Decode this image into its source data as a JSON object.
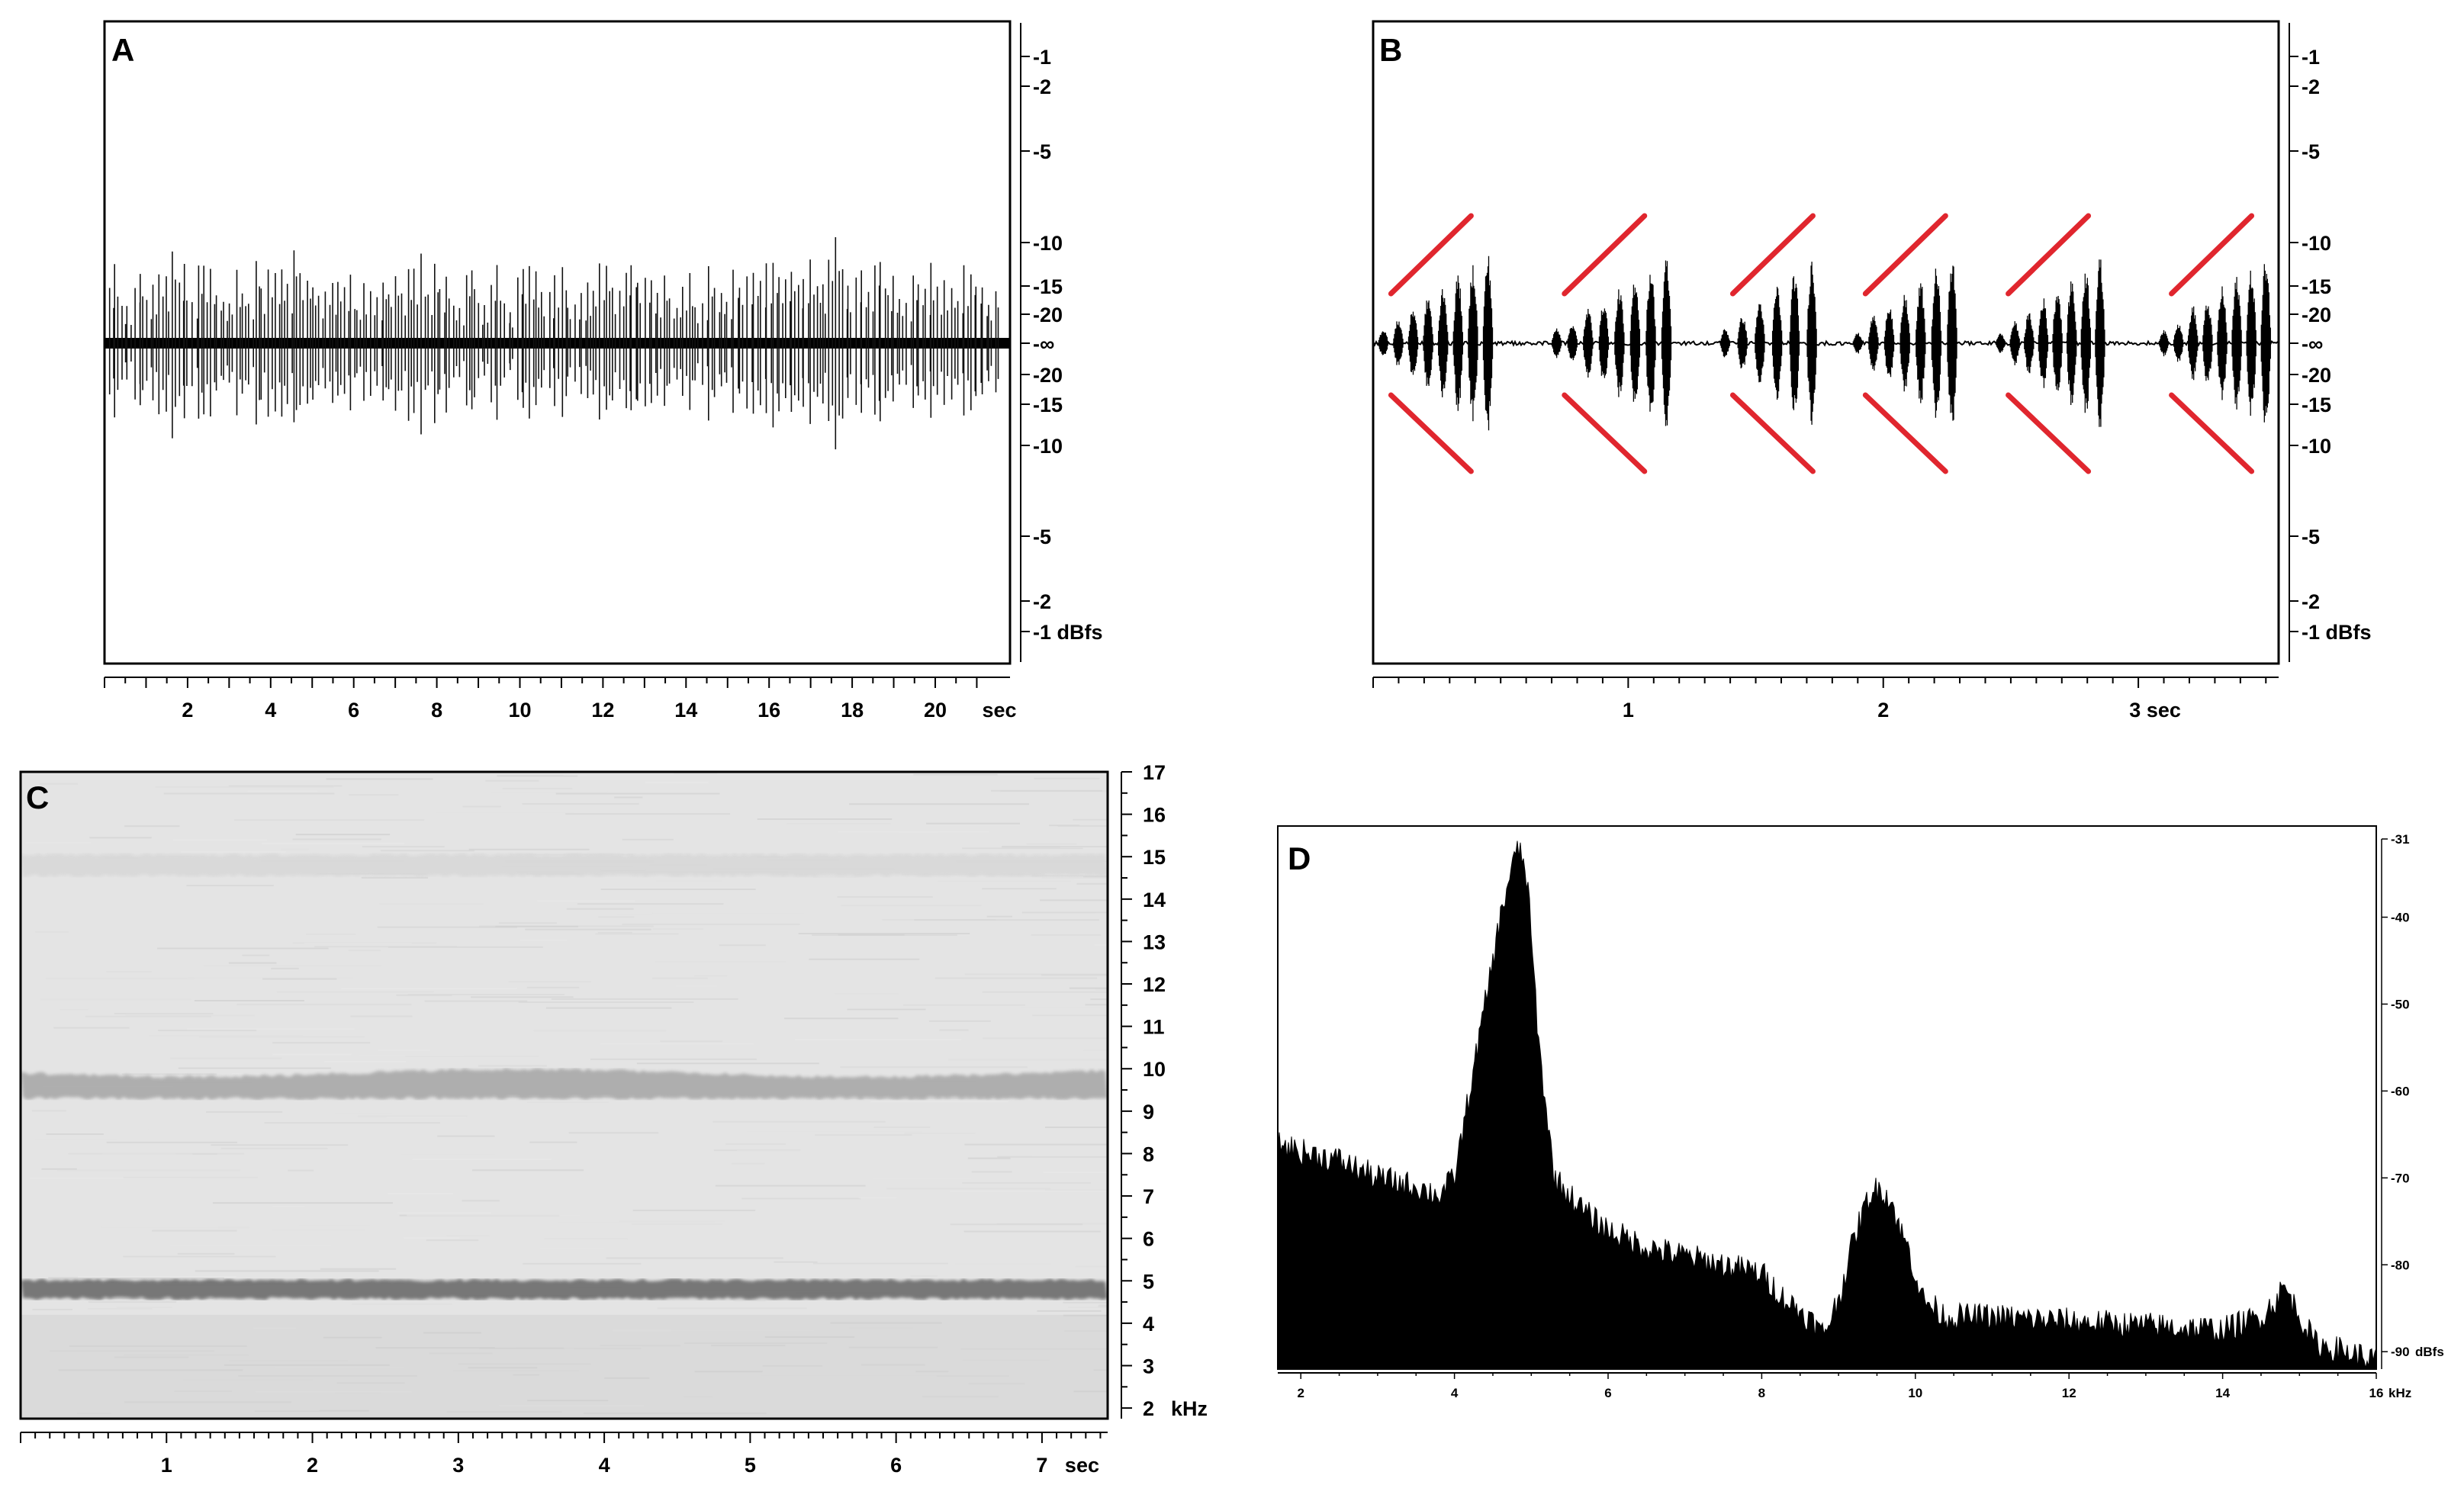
{
  "chart_data": [
    {
      "panel": "A",
      "type": "line",
      "description_kind": "waveform",
      "x_unit": "sec",
      "x_ticks": [
        2,
        4,
        6,
        8,
        10,
        12,
        14,
        16,
        18,
        20
      ],
      "x_tick_labels": [
        "2",
        "4",
        "6",
        "8",
        "10",
        "12",
        "14",
        "16",
        "18",
        "20"
      ],
      "xlim": [
        0,
        21.8
      ],
      "y_right_tick_labels": [
        "-1",
        "-2",
        "-5",
        "-10",
        "-15",
        "-20",
        "-∞",
        "-20",
        "-15",
        "-10",
        "-5",
        "-2",
        "-1 dBfs"
      ],
      "pulse_count": 140,
      "peak_level_dbfs": -10,
      "typical_level_dbfs": -15
    },
    {
      "panel": "B",
      "type": "line",
      "description_kind": "waveform",
      "x_unit": "sec",
      "x_ticks": [
        1,
        2,
        3
      ],
      "x_tick_labels": [
        "1",
        "2",
        "3 sec"
      ],
      "xlim": [
        0,
        3.55
      ],
      "y_right_tick_labels": [
        "-1",
        "-2",
        "-5",
        "-10",
        "-15",
        "-20",
        "-∞",
        "-20",
        "-15",
        "-10",
        "-5",
        "-2",
        "-1 dBfs"
      ],
      "groups": [
        {
          "start": 0.04,
          "end": 0.45,
          "pulses": 8
        },
        {
          "start": 0.72,
          "end": 1.15,
          "pulses": 8
        },
        {
          "start": 1.38,
          "end": 1.72,
          "pulses": 6
        },
        {
          "start": 1.9,
          "end": 2.27,
          "pulses": 7
        },
        {
          "start": 2.46,
          "end": 2.85,
          "pulses": 8
        },
        {
          "start": 3.1,
          "end": 3.5,
          "pulses": 8
        }
      ],
      "annotation_color": "#e0262e"
    },
    {
      "panel": "C",
      "type": "heatmap",
      "description_kind": "spectrogram",
      "x_unit": "sec",
      "x_tick_labels": [
        "1",
        "2",
        "3",
        "4",
        "5",
        "6",
        "7"
      ],
      "x_tick_label_last_suffix": "sec",
      "xlim": [
        0,
        7.45
      ],
      "y_unit": "kHz",
      "y_tick_labels": [
        "17",
        "16",
        "15",
        "14",
        "13",
        "12",
        "11",
        "10",
        "9",
        "8",
        "7",
        "6",
        "5",
        "4",
        "3",
        "2"
      ],
      "y_tick_label_last_suffix": "kHz",
      "ylim": [
        1.75,
        17
      ],
      "bands_khz": [
        {
          "center": 4.8,
          "strength": 0.7,
          "width": 0.22
        },
        {
          "center": 9.6,
          "strength": 0.35,
          "width": 0.3
        },
        {
          "center": 14.8,
          "strength": 0.08,
          "width": 0.25
        }
      ]
    },
    {
      "panel": "D",
      "type": "area",
      "description_kind": "power spectrum",
      "x_unit": "kHz",
      "x_tick_labels": [
        "2",
        "4",
        "6",
        "8",
        "10",
        "12",
        "14",
        "16"
      ],
      "x_tick_label_last_suffix": "kHz",
      "xlim": [
        1.7,
        16
      ],
      "y_tick_labels": [
        "-31",
        "-40",
        "-50",
        "-60",
        "-70",
        "-80",
        "-90"
      ],
      "y_tick_label_last_suffix": "dBfs",
      "ylim": [
        -92,
        -31
      ],
      "spectrum": {
        "x": [
          1.7,
          2.0,
          2.5,
          3.0,
          3.5,
          3.8,
          4.0,
          4.2,
          4.4,
          4.6,
          4.75,
          4.85,
          4.95,
          5.1,
          5.3,
          5.5,
          5.7,
          6.0,
          6.5,
          7.0,
          7.5,
          8.0,
          8.3,
          8.6,
          8.8,
          9.0,
          9.2,
          9.4,
          9.55,
          9.7,
          9.8,
          9.9,
          10.1,
          10.4,
          11.0,
          12.0,
          13.0,
          14.0,
          14.5,
          14.7,
          14.8,
          14.95,
          15.2,
          16.0
        ],
        "y": [
          -66,
          -67,
          -68,
          -70,
          -71,
          -72,
          -70,
          -60,
          -50,
          -40,
          -34,
          -32,
          -36,
          -55,
          -70,
          -72,
          -74,
          -76,
          -78,
          -79,
          -80,
          -81,
          -84,
          -86,
          -88,
          -84,
          -77,
          -72,
          -71,
          -73,
          -76,
          -78,
          -84,
          -86,
          -86,
          -86.5,
          -87,
          -87.5,
          -86,
          -84,
          -82.5,
          -85,
          -89,
          -91
        ]
      }
    }
  ],
  "panels": {
    "A": {
      "letter": "A"
    },
    "B": {
      "letter": "B"
    },
    "C": {
      "letter": "C"
    },
    "D": {
      "letter": "D"
    }
  }
}
